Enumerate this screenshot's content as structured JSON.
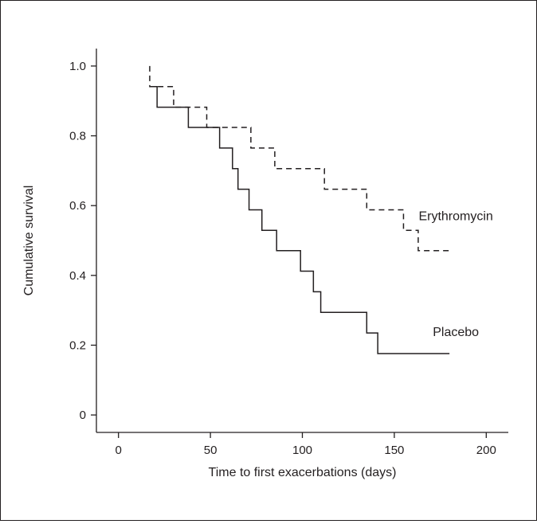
{
  "chart_data": {
    "type": "line",
    "title": "",
    "xlabel": "Time to first exacerbations (days)",
    "ylabel": "Cumulative survival",
    "xlim": [
      -12,
      212
    ],
    "ylim": [
      -0.05,
      1.05
    ],
    "xticks": [
      0,
      50,
      100,
      150,
      200
    ],
    "yticks": [
      0,
      0.2,
      0.4,
      0.6,
      0.8,
      1.0
    ],
    "xtick_labels": [
      "0",
      "50",
      "100",
      "150",
      "200"
    ],
    "ytick_labels": [
      "0",
      "0.2",
      "0.4",
      "0.6",
      "0.8",
      "1.0"
    ],
    "grid": false,
    "legend": "inline labels at line ends",
    "series": [
      {
        "name": "Erythromycin",
        "style": "dashed",
        "color": "#231f20",
        "step": "post",
        "points": [
          [
            17,
            1.0
          ],
          [
            17,
            0.941
          ],
          [
            30,
            0.882
          ],
          [
            48,
            0.824
          ],
          [
            72,
            0.765
          ],
          [
            85,
            0.706
          ],
          [
            112,
            0.647
          ],
          [
            135,
            0.588
          ],
          [
            155,
            0.529
          ],
          [
            163,
            0.471
          ],
          [
            180,
            0.471
          ]
        ]
      },
      {
        "name": "Placebo",
        "style": "solid",
        "color": "#231f20",
        "step": "post",
        "points": [
          [
            17,
            0.941
          ],
          [
            21,
            0.882
          ],
          [
            38,
            0.824
          ],
          [
            55,
            0.765
          ],
          [
            62,
            0.706
          ],
          [
            65,
            0.647
          ],
          [
            71,
            0.588
          ],
          [
            78,
            0.529
          ],
          [
            86,
            0.471
          ],
          [
            99,
            0.412
          ],
          [
            106,
            0.353
          ],
          [
            110,
            0.294
          ],
          [
            135,
            0.235
          ],
          [
            141,
            0.176
          ],
          [
            180,
            0.176
          ]
        ]
      }
    ]
  }
}
